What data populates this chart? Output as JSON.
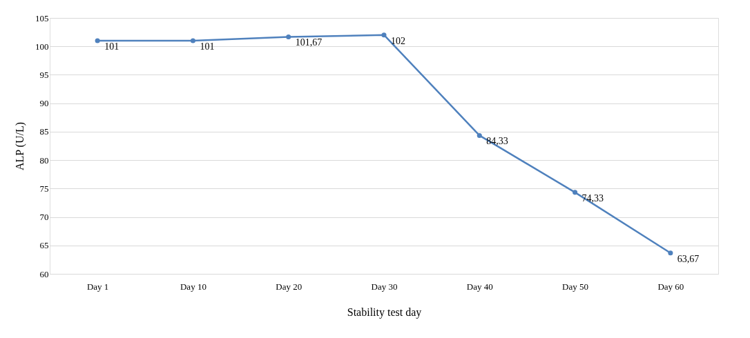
{
  "chart_data": {
    "type": "line",
    "xlabel": "Stability test day",
    "ylabel": "ALP (U/L)",
    "categories": [
      "Day 1",
      "Day 10",
      "Day 20",
      "Day 30",
      "Day 40",
      "Day 50",
      "Day 60"
    ],
    "series": [
      {
        "color": "#4f81bd",
        "values": [
          101,
          101,
          101.67,
          102,
          84.33,
          74.33,
          63.67
        ],
        "value_labels": [
          "101",
          "101",
          "101,67",
          "102",
          "84,33",
          "74,33",
          "63,67"
        ]
      }
    ],
    "ylim": [
      60,
      105
    ],
    "yticks": [
      60,
      65,
      70,
      75,
      80,
      85,
      90,
      95,
      100,
      105
    ],
    "grid": "y",
    "marker": "circle",
    "line_style": "solid"
  }
}
